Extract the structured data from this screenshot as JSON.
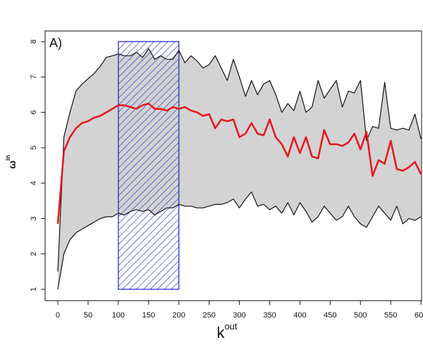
{
  "chart_data": {
    "type": "band-line",
    "annotation": "A)",
    "x_label": "k",
    "x_label_sup": "out",
    "y_label": "ω",
    "y_label_sup": "in",
    "x": [
      0,
      10,
      20,
      30,
      40,
      50,
      60,
      70,
      80,
      90,
      100,
      110,
      120,
      130,
      140,
      150,
      160,
      170,
      180,
      190,
      200,
      210,
      220,
      230,
      240,
      250,
      260,
      270,
      280,
      290,
      300,
      310,
      320,
      330,
      340,
      350,
      360,
      370,
      380,
      390,
      400,
      410,
      420,
      430,
      440,
      450,
      460,
      470,
      480,
      490,
      500,
      510,
      520,
      530,
      540,
      550,
      560,
      570,
      580,
      590,
      600
    ],
    "band": {
      "color": "#d3d3d3",
      "line_color": "#111111",
      "upper": [
        1.5,
        5.3,
        6.0,
        6.6,
        6.8,
        6.95,
        7.1,
        7.3,
        7.55,
        7.6,
        7.65,
        7.6,
        7.6,
        7.7,
        7.55,
        7.8,
        7.5,
        7.6,
        7.5,
        7.5,
        7.75,
        7.4,
        7.6,
        7.45,
        7.25,
        7.35,
        7.6,
        7.25,
        6.9,
        7.5,
        7.0,
        6.45,
        6.9,
        6.5,
        6.8,
        6.9,
        6.5,
        6.0,
        6.25,
        6.05,
        6.6,
        6.0,
        6.15,
        6.9,
        6.4,
        6.65,
        6.9,
        6.15,
        6.6,
        6.55,
        6.9,
        5.2,
        5.6,
        5.55,
        6.85,
        5.55,
        5.5,
        5.55,
        5.5,
        5.95,
        5.25
      ],
      "lower": [
        1.0,
        2.0,
        2.4,
        2.6,
        2.7,
        2.8,
        2.9,
        3.0,
        3.05,
        3.05,
        3.15,
        3.1,
        3.2,
        3.25,
        3.2,
        3.25,
        3.1,
        3.2,
        3.3,
        3.3,
        3.4,
        3.35,
        3.35,
        3.3,
        3.3,
        3.35,
        3.4,
        3.4,
        3.45,
        3.55,
        3.3,
        3.55,
        3.75,
        3.35,
        3.4,
        3.25,
        3.35,
        3.15,
        3.45,
        3.1,
        3.45,
        3.2,
        2.9,
        3.05,
        3.35,
        3.15,
        2.95,
        3.05,
        3.35,
        3.05,
        2.85,
        2.75,
        3.05,
        3.35,
        3.15,
        2.95,
        3.35,
        2.85,
        3.0,
        2.95,
        3.05
      ]
    },
    "line": {
      "color": "#e8141c",
      "values": [
        2.85,
        4.9,
        5.3,
        5.55,
        5.7,
        5.75,
        5.85,
        5.9,
        6.0,
        6.1,
        6.2,
        6.2,
        6.15,
        6.1,
        6.2,
        6.25,
        6.1,
        6.1,
        6.05,
        6.15,
        6.1,
        6.15,
        6.05,
        6.0,
        5.9,
        5.95,
        5.55,
        5.8,
        5.75,
        5.8,
        5.3,
        5.4,
        5.7,
        5.4,
        5.35,
        5.8,
        5.3,
        5.1,
        4.75,
        5.3,
        4.85,
        5.3,
        4.75,
        4.7,
        5.5,
        5.1,
        5.1,
        5.05,
        5.15,
        5.4,
        4.95,
        5.45,
        4.2,
        4.65,
        4.55,
        5.2,
        4.4,
        4.35,
        4.45,
        4.6,
        4.25
      ]
    },
    "highlight": {
      "x": [
        100,
        200
      ],
      "y": [
        1,
        8
      ],
      "color": "#2a2acc"
    },
    "xlim": [
      -21,
      601
    ],
    "ylim": [
      0.68,
      8.3
    ],
    "xticks": [
      0,
      50,
      100,
      150,
      200,
      250,
      300,
      350,
      400,
      450,
      500,
      550,
      600
    ],
    "yticks": [
      1,
      2,
      3,
      4,
      5,
      6,
      7,
      8
    ]
  }
}
